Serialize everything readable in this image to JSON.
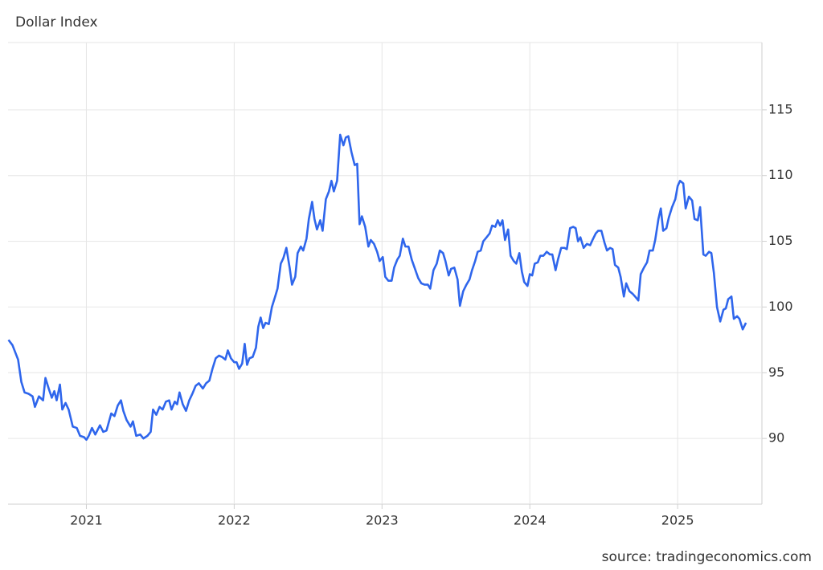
{
  "chart_data": {
    "type": "line",
    "title": "Dollar Index",
    "source": "source: tradingeconomics.com",
    "xlim": [
      2020.47,
      2025.57
    ],
    "xticks": [
      2021,
      2022,
      2023,
      2024,
      2025
    ],
    "ylim": [
      85,
      120
    ],
    "yticks": [
      90,
      95,
      100,
      105,
      110,
      115
    ],
    "grid": true,
    "series": [
      {
        "name": "Dollar Index",
        "color": "#2f66ec",
        "x": [
          2020.473,
          2020.5,
          2020.538,
          2020.56,
          2020.582,
          2020.609,
          2020.636,
          2020.652,
          2020.679,
          2020.707,
          2020.723,
          2020.745,
          2020.766,
          2020.783,
          2020.799,
          2020.821,
          2020.837,
          2020.859,
          2020.88,
          2020.908,
          2020.935,
          2020.957,
          2020.984,
          2021.0,
          2021.016,
          2021.038,
          2021.06,
          2021.092,
          2021.114,
          2021.136,
          2021.168,
          2021.19,
          2021.212,
          2021.234,
          2021.25,
          2021.272,
          2021.299,
          2021.315,
          2021.337,
          2021.364,
          2021.386,
          2021.413,
          2021.435,
          2021.451,
          2021.473,
          2021.495,
          2021.516,
          2021.538,
          2021.56,
          2021.576,
          2021.598,
          2021.614,
          2021.63,
          2021.652,
          2021.674,
          2021.696,
          2021.717,
          2021.739,
          2021.761,
          2021.788,
          2021.81,
          2021.832,
          2021.853,
          2021.875,
          2021.897,
          2021.918,
          2021.94,
          2021.957,
          2021.978,
          2022.0,
          2022.016,
          2022.033,
          2022.054,
          2022.071,
          2022.087,
          2022.103,
          2022.125,
          2022.147,
          2022.163,
          2022.179,
          2022.196,
          2022.212,
          2022.234,
          2022.255,
          2022.277,
          2022.293,
          2022.315,
          2022.332,
          2022.353,
          2022.375,
          2022.391,
          2022.413,
          2022.429,
          2022.451,
          2022.467,
          2022.489,
          2022.505,
          2022.527,
          2022.543,
          2022.56,
          2022.582,
          2022.598,
          2022.62,
          2022.641,
          2022.658,
          2022.674,
          2022.696,
          2022.717,
          2022.739,
          2022.755,
          2022.772,
          2022.793,
          2022.815,
          2022.832,
          2022.848,
          2022.864,
          2022.886,
          2022.908,
          2022.924,
          2022.946,
          2022.967,
          2022.984,
          2023.005,
          2023.022,
          2023.043,
          2023.065,
          2023.082,
          2023.103,
          2023.12,
          2023.141,
          2023.158,
          2023.179,
          2023.201,
          2023.223,
          2023.245,
          2023.266,
          2023.288,
          2023.31,
          2023.326,
          2023.348,
          2023.37,
          2023.391,
          2023.413,
          2023.429,
          2023.451,
          2023.467,
          2023.489,
          2023.511,
          2023.527,
          2023.549,
          2023.571,
          2023.592,
          2023.609,
          2023.63,
          2023.647,
          2023.668,
          2023.685,
          2023.707,
          2023.728,
          2023.745,
          2023.766,
          2023.783,
          2023.799,
          2023.815,
          2023.832,
          2023.853,
          2023.87,
          2023.891,
          2023.908,
          2023.929,
          2023.946,
          2023.962,
          2023.984,
          2024.0,
          2024.016,
          2024.033,
          2024.054,
          2024.071,
          2024.092,
          2024.114,
          2024.136,
          2024.152,
          2024.174,
          2024.19,
          2024.212,
          2024.234,
          2024.25,
          2024.272,
          2024.293,
          2024.31,
          2024.326,
          2024.342,
          2024.364,
          2024.386,
          2024.408,
          2024.424,
          2024.446,
          2024.462,
          2024.484,
          2024.505,
          2024.522,
          2024.543,
          2024.56,
          2024.576,
          2024.598,
          2024.614,
          2024.636,
          2024.652,
          2024.674,
          2024.696,
          2024.712,
          2024.734,
          2024.75,
          2024.772,
          2024.793,
          2024.81,
          2024.832,
          2024.848,
          2024.87,
          2024.886,
          2024.902,
          2024.924,
          2024.94,
          2024.962,
          2024.984,
          2025.0,
          2025.016,
          2025.038,
          2025.054,
          2025.076,
          2025.098,
          2025.114,
          2025.136,
          2025.152,
          2025.174,
          2025.19,
          2025.212,
          2025.228,
          2025.245,
          2025.266,
          2025.288,
          2025.31,
          2025.326,
          2025.342,
          2025.364,
          2025.38,
          2025.402,
          2025.418,
          2025.44,
          2025.462
        ],
        "values": [
          97.5,
          97.1,
          96.0,
          94.3,
          93.5,
          93.4,
          93.2,
          92.4,
          93.2,
          92.9,
          94.6,
          93.8,
          93.1,
          93.6,
          92.9,
          94.1,
          92.2,
          92.7,
          92.2,
          90.9,
          90.8,
          90.2,
          90.1,
          89.9,
          90.2,
          90.8,
          90.3,
          91.0,
          90.5,
          90.6,
          91.9,
          91.7,
          92.5,
          92.9,
          92.1,
          91.4,
          90.9,
          91.3,
          90.2,
          90.3,
          90.0,
          90.2,
          90.5,
          92.2,
          91.8,
          92.4,
          92.2,
          92.8,
          92.9,
          92.2,
          92.8,
          92.6,
          93.5,
          92.6,
          92.1,
          92.9,
          93.4,
          94.0,
          94.2,
          93.8,
          94.2,
          94.4,
          95.3,
          96.1,
          96.3,
          96.2,
          96.0,
          96.7,
          96.1,
          95.8,
          95.8,
          95.3,
          95.7,
          97.2,
          95.6,
          96.1,
          96.2,
          96.9,
          98.5,
          99.2,
          98.4,
          98.8,
          98.7,
          100.0,
          100.8,
          101.4,
          103.3,
          103.7,
          104.5,
          103.0,
          101.7,
          102.3,
          104.1,
          104.6,
          104.3,
          105.2,
          106.7,
          108.0,
          106.7,
          105.9,
          106.6,
          105.8,
          108.2,
          108.8,
          109.6,
          108.8,
          109.6,
          113.1,
          112.3,
          112.9,
          113.0,
          111.8,
          110.8,
          110.9,
          106.3,
          106.9,
          106.1,
          104.6,
          105.1,
          104.8,
          104.2,
          103.5,
          103.8,
          102.3,
          102.0,
          102.0,
          103.0,
          103.6,
          103.9,
          105.2,
          104.6,
          104.6,
          103.6,
          102.9,
          102.2,
          101.8,
          101.7,
          101.7,
          101.4,
          102.8,
          103.3,
          104.3,
          104.1,
          103.5,
          102.4,
          102.9,
          103.0,
          102.1,
          100.1,
          101.2,
          101.7,
          102.1,
          102.8,
          103.5,
          104.2,
          104.3,
          105.0,
          105.3,
          105.6,
          106.2,
          106.1,
          106.6,
          106.2,
          106.6,
          105.1,
          105.9,
          103.9,
          103.5,
          103.3,
          104.1,
          102.7,
          101.9,
          101.6,
          102.5,
          102.4,
          103.3,
          103.4,
          103.9,
          103.9,
          104.2,
          104.0,
          104.0,
          102.8,
          103.6,
          104.5,
          104.5,
          104.4,
          106.0,
          106.1,
          106.0,
          105.0,
          105.3,
          104.5,
          104.8,
          104.7,
          105.1,
          105.6,
          105.8,
          105.8,
          104.9,
          104.3,
          104.5,
          104.4,
          103.2,
          103.0,
          102.3,
          100.8,
          101.8,
          101.2,
          101.0,
          100.8,
          100.5,
          102.5,
          103.0,
          103.4,
          104.3,
          104.3,
          105.1,
          106.7,
          107.5,
          105.8,
          106.0,
          106.8,
          107.6,
          108.2,
          109.2,
          109.6,
          109.4,
          107.5,
          108.4,
          108.1,
          106.7,
          106.6,
          107.6,
          104.0,
          103.9,
          104.2,
          104.1,
          102.6,
          100.0,
          98.9,
          99.8,
          99.9,
          100.6,
          100.8,
          99.1,
          99.3,
          99.1,
          98.3,
          98.8
        ]
      }
    ]
  }
}
